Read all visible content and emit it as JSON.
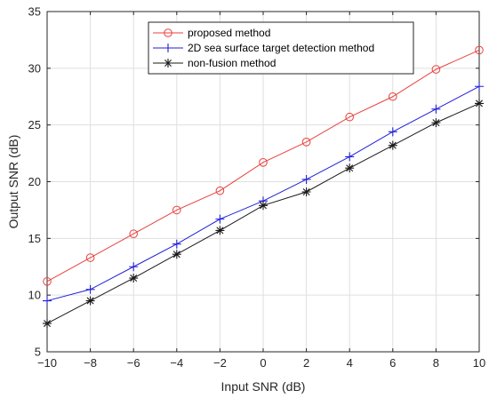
{
  "chart_data": {
    "type": "line",
    "xlabel": "Input SNR (dB)",
    "ylabel": "Output SNR (dB)",
    "xlim": [
      -10,
      10
    ],
    "ylim": [
      5,
      35
    ],
    "xticks": [
      -10,
      -8,
      -6,
      -4,
      -2,
      0,
      2,
      4,
      6,
      8,
      10
    ],
    "yticks": [
      5,
      10,
      15,
      20,
      25,
      30,
      35
    ],
    "grid": true,
    "legend_position": "top-center",
    "x": [
      -10,
      -8,
      -6,
      -4,
      -2,
      0,
      2,
      4,
      6,
      8,
      10
    ],
    "series": [
      {
        "name": "proposed method",
        "color": "#e8413c",
        "marker": "circle",
        "values": [
          11.2,
          13.3,
          15.4,
          17.5,
          19.2,
          21.7,
          23.5,
          25.7,
          27.5,
          29.9,
          31.6
        ]
      },
      {
        "name": "2D sea surface target detection method",
        "color": "#1f1fd9",
        "marker": "plus",
        "values": [
          9.5,
          10.5,
          12.5,
          14.5,
          16.7,
          18.3,
          20.2,
          22.2,
          24.4,
          26.4,
          28.4
        ]
      },
      {
        "name": "non-fusion method",
        "color": "#1a1a1a",
        "marker": "asterisk",
        "values": [
          7.5,
          9.5,
          11.5,
          13.6,
          15.7,
          17.9,
          19.1,
          21.2,
          23.2,
          25.2,
          26.9
        ]
      }
    ]
  }
}
